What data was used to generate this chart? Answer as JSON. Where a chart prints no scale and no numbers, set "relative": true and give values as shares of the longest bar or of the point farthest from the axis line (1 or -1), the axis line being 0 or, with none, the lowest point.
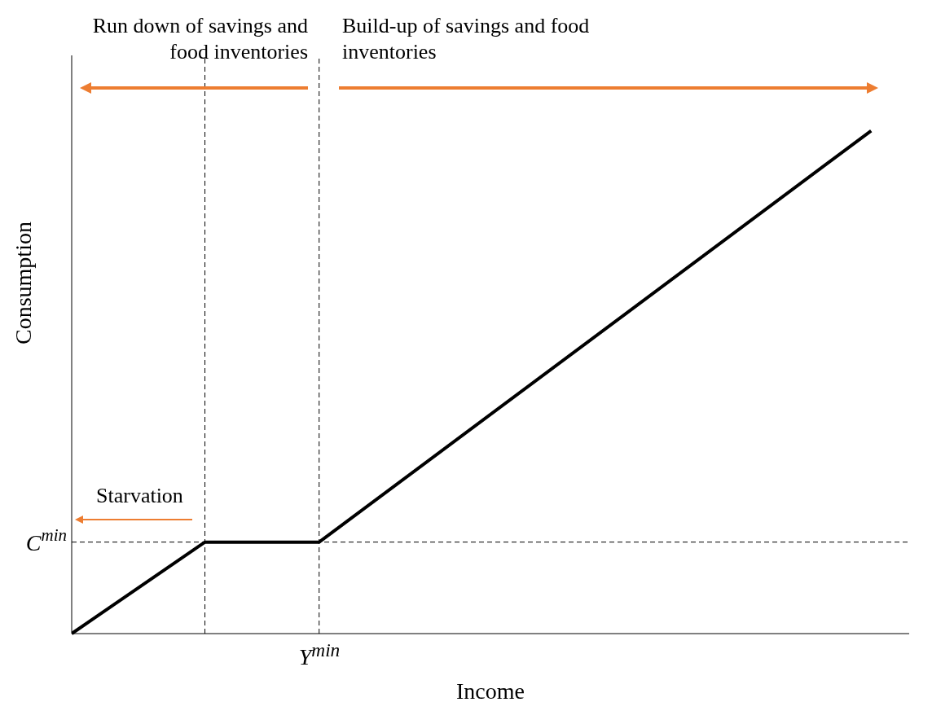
{
  "chart_data": {
    "type": "line",
    "relative": true,
    "xlabel": "Income",
    "ylabel": "Consumption",
    "categories": [
      null,
      null,
      null,
      null,
      null,
      null,
      null,
      null,
      null,
      null,
      null,
      null,
      null,
      null,
      null,
      null,
      null,
      null,
      null,
      null,
      null,
      null,
      null,
      null,
      null,
      null,
      null,
      null,
      null,
      null,
      null,
      null,
      null,
      null,
      null,
      null,
      null,
      null,
      null,
      null,
      null,
      null,
      null
    ],
    "series": [
      {
        "color": "#000000",
        "values": [
          0,
          null,
          null,
          null,
          null,
          null,
          null,
          0.182,
          null,
          null,
          null,
          null,
          null,
          0.182,
          null,
          null,
          null,
          null,
          null,
          null,
          null,
          null,
          null,
          null,
          null,
          null,
          null,
          null,
          null,
          null,
          null,
          null,
          null,
          null,
          null,
          null,
          null,
          null,
          null,
          null,
          null,
          null,
          1
        ]
      }
    ],
    "ref_lines": [
      {
        "axis": "y",
        "value": 0.182,
        "label": "C$^{min}$",
        "color": "#000000",
        "line_style": "dashed"
      }
    ],
    "annotations": [
      "Run down of savings and food inventories",
      "Build-up of savings and food inventories",
      "Starvation",
      "Y$^{min}$"
    ]
  }
}
